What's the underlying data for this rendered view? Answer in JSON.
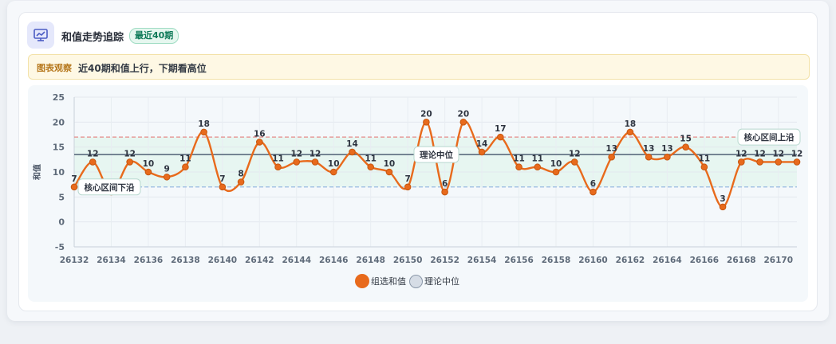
{
  "header": {
    "title": "和值走势追踪",
    "badge": "最近40期"
  },
  "observation": {
    "tag": "图表观察",
    "text": "近40期和值上行，下期看高位"
  },
  "colors": {
    "series": "#e86a1c",
    "median_line": "#5b6b7e",
    "band_upper": "#e58a8a",
    "band_lower": "#8fb4e0",
    "band_fill": "#e3f5ef"
  },
  "chart_data": {
    "type": "line",
    "ylabel": "和值",
    "xlabel": "",
    "ylim": [
      -5,
      25
    ],
    "yticks": [
      -5,
      0,
      5,
      10,
      15,
      20,
      25
    ],
    "x": [
      26132,
      26133,
      26134,
      26135,
      26136,
      26137,
      26138,
      26139,
      26140,
      26141,
      26142,
      26143,
      26144,
      26145,
      26146,
      26147,
      26148,
      26149,
      26150,
      26151,
      26152,
      26153,
      26154,
      26155,
      26156,
      26157,
      26158,
      26159,
      26160,
      26161,
      26162,
      26163,
      26164,
      26165,
      26166,
      26167,
      26168,
      26169,
      26170,
      26171
    ],
    "xticks": [
      26132,
      26134,
      26136,
      26138,
      26140,
      26142,
      26144,
      26146,
      26148,
      26150,
      26152,
      26154,
      26156,
      26158,
      26160,
      26162,
      26164,
      26166,
      26168,
      26170
    ],
    "series": [
      {
        "name": "组选和值",
        "values": [
          7,
          12,
          6,
          12,
          10,
          9,
          11,
          18,
          7,
          8,
          16,
          11,
          12,
          12,
          10,
          14,
          11,
          10,
          7,
          20,
          6,
          20,
          14,
          17,
          11,
          11,
          10,
          12,
          6,
          13,
          18,
          13,
          13,
          15,
          11,
          3,
          12,
          12,
          12,
          12
        ]
      }
    ],
    "median": {
      "name": "理论中位",
      "value": 13.5
    },
    "band": {
      "upper": 17,
      "lower": 7,
      "upper_label": "核心区间上沿",
      "lower_label": "核心区间下沿"
    },
    "grid": true,
    "legend": "bottom-center",
    "legend_items": [
      "组选和值",
      "理论中位"
    ]
  }
}
